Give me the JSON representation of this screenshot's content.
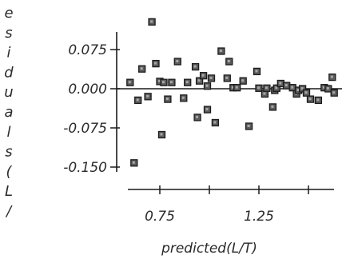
{
  "chart_data": {
    "type": "scatter",
    "xlabel": "predicted(L/T)",
    "ylabel": "esiduals(L/",
    "xlim": [
      0.53,
      1.72
    ],
    "ylim": [
      -0.165,
      0.145
    ],
    "x_ticks": [
      0.75,
      1.0,
      1.25,
      1.5
    ],
    "x_tick_labels": [
      "0.75",
      "",
      "1.25",
      ""
    ],
    "y_ticks": [
      0.075,
      0.0,
      -0.075,
      -0.15
    ],
    "y_tick_labels": [
      "0.075",
      "0.000",
      "-0.075",
      "-0.150"
    ],
    "reference_line_y": 0.0,
    "grid": false,
    "marker": "square",
    "series": [
      {
        "x": [
          0.6,
          0.62,
          0.64,
          0.66,
          0.69,
          0.71,
          0.73,
          0.75,
          0.76,
          0.77,
          0.79,
          0.81,
          0.84,
          0.87,
          0.89,
          0.93,
          0.94,
          0.95,
          0.97,
          0.99,
          0.99,
          1.01,
          1.03,
          1.06,
          1.09,
          1.1,
          1.12,
          1.14,
          1.17,
          1.2,
          1.24,
          1.25,
          1.28,
          1.29,
          1.32,
          1.33,
          1.34,
          1.36,
          1.39,
          1.42,
          1.44,
          1.45,
          1.47,
          1.49,
          1.51,
          1.55,
          1.58,
          1.6,
          1.62,
          1.63
        ],
        "y": [
          0.012,
          -0.142,
          -0.022,
          0.038,
          -0.015,
          0.128,
          0.048,
          0.014,
          -0.088,
          0.012,
          -0.02,
          0.012,
          0.052,
          -0.018,
          0.012,
          0.042,
          -0.055,
          0.015,
          0.025,
          0.005,
          -0.04,
          0.02,
          -0.065,
          0.072,
          0.02,
          0.052,
          0.002,
          0.002,
          0.015,
          -0.072,
          0.033,
          0.001,
          -0.01,
          0.001,
          -0.035,
          -0.003,
          0.001,
          0.01,
          0.006,
          0.002,
          -0.01,
          -0.003,
          0.0,
          -0.008,
          -0.02,
          -0.022,
          0.002,
          0.0,
          0.022,
          -0.008
        ]
      }
    ]
  }
}
